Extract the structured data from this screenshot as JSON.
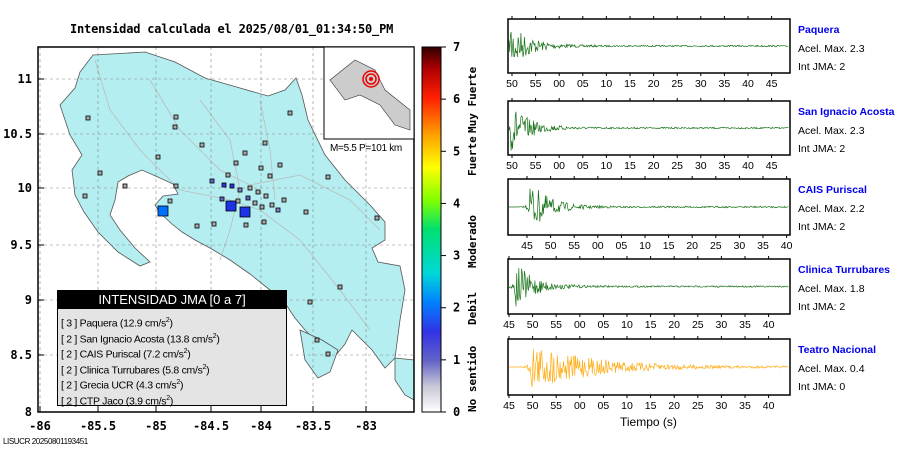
{
  "title": "Intensidad calculada el 2025/08/01_01:34:50_PM",
  "map": {
    "x_ticks": [
      "-86",
      "-85.5",
      "-85",
      "-84.5",
      "-84",
      "-83.5",
      "-83"
    ],
    "y_ticks": [
      "11",
      "10.5",
      "10",
      "9.5",
      "9",
      "8.5",
      "8"
    ],
    "inset_label": "M=5.5 P=101 km"
  },
  "colorbar": {
    "ticks": [
      "0",
      "1",
      "2",
      "3",
      "4",
      "5",
      "6",
      "7"
    ],
    "labels": [
      "No sentido",
      "Debil",
      "Moderado",
      "Fuerte",
      "Muy Fuerte"
    ]
  },
  "legend": {
    "title": "INTENSIDAD JMA [0 a 7]",
    "items": [
      {
        "int": "[ 3 ]",
        "name": "Paquera",
        "acc": "(12.9 cm/s",
        "sup": "2",
        "close": ")"
      },
      {
        "int": "[ 2 ]",
        "name": "San Ignacio Acosta",
        "acc": "(13.8 cm/s",
        "sup": "2",
        "close": ")"
      },
      {
        "int": "[ 2 ]",
        "name": "CAIS Puriscal",
        "acc": "(7.2 cm/s",
        "sup": "2",
        "close": ")"
      },
      {
        "int": "[ 2 ]",
        "name": "Clinica Turrubares",
        "acc": "(5.8 cm/s",
        "sup": "2",
        "close": ")"
      },
      {
        "int": "[ 2 ]",
        "name": "Grecia UCR",
        "acc": "(4.3 cm/s",
        "sup": "2",
        "close": ")"
      },
      {
        "int": "[ 2 ]",
        "name": "CTP Jaco",
        "acc": "(3.9 cm/s",
        "sup": "2",
        "close": ")"
      }
    ]
  },
  "waveforms": [
    {
      "name": "Paquera",
      "acel": "Acel. Max. 2.3",
      "int": "Int JMA: 2",
      "color": "#006400",
      "ticks": [
        "50",
        "55",
        "00",
        "05",
        "10",
        "15",
        "20",
        "25",
        "30",
        "35",
        "40",
        "45"
      ]
    },
    {
      "name": "San Ignacio Acosta",
      "acel": "Acel. Max. 2.3",
      "int": "Int JMA: 2",
      "color": "#006400",
      "ticks": [
        "50",
        "55",
        "00",
        "05",
        "10",
        "15",
        "20",
        "25",
        "30",
        "35",
        "40",
        "45"
      ]
    },
    {
      "name": "CAIS Puriscal",
      "acel": "Acel. Max. 2.2",
      "int": "Int JMA: 2",
      "color": "#006400",
      "ticks": [
        "45",
        "50",
        "55",
        "00",
        "05",
        "10",
        "15",
        "20",
        "25",
        "30",
        "35",
        "40"
      ]
    },
    {
      "name": "Clinica Turrubares",
      "acel": "Acel. Max. 1.8",
      "int": "Int JMA: 2",
      "color": "#006400",
      "ticks": [
        "45",
        "50",
        "55",
        "00",
        "05",
        "10",
        "15",
        "20",
        "25",
        "30",
        "35",
        "40"
      ]
    },
    {
      "name": "Teatro Nacional",
      "acel": "Acel. Max. 0.4",
      "int": "Int JMA: 0",
      "color": "#ffa500",
      "ticks": [
        "45",
        "50",
        "55",
        "00",
        "05",
        "10",
        "15",
        "20",
        "25",
        "30",
        "35",
        "40"
      ]
    }
  ],
  "xlabel": "Tiempo (s)",
  "footer": "LISUCR 20250801193451"
}
